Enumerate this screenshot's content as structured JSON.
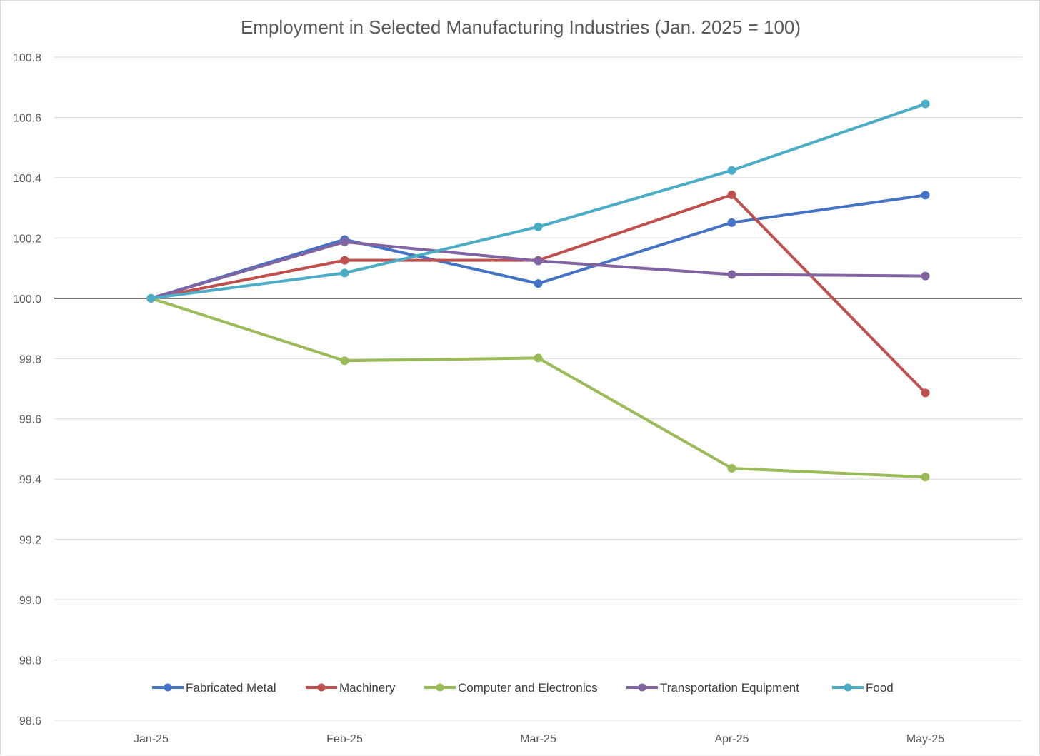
{
  "chart_data": {
    "type": "line",
    "title": "Employment in Selected Manufacturing Industries (Jan. 2025 = 100)",
    "xlabel": "",
    "ylabel": "",
    "categories": [
      "Jan-25",
      "Feb-25",
      "Mar-25",
      "Apr-25",
      "May-25"
    ],
    "ylim": [
      98.6,
      100.8
    ],
    "yticks": [
      "100.8",
      "100.6",
      "100.4",
      "100.2",
      "100.0",
      "99.8",
      "99.6",
      "99.4",
      "99.2",
      "99.0",
      "98.8",
      "98.6"
    ],
    "baseline": 100.0,
    "grid": true,
    "legend_position": "bottom",
    "series": [
      {
        "name": "Fabricated Metal",
        "color": "#4472c4",
        "values": [
          100.0,
          100.195,
          100.049,
          100.251,
          100.342
        ]
      },
      {
        "name": "Machinery",
        "color": "#c0504d",
        "values": [
          100.0,
          100.126,
          100.126,
          100.343,
          99.686
        ]
      },
      {
        "name": "Computer and Electronics",
        "color": "#9bbb59",
        "values": [
          100.0,
          99.793,
          99.802,
          99.436,
          99.407
        ]
      },
      {
        "name": "Transportation Equipment",
        "color": "#8064a2",
        "values": [
          100.0,
          100.187,
          100.124,
          100.079,
          100.074
        ]
      },
      {
        "name": "Food",
        "color": "#4bacc6",
        "values": [
          100.0,
          100.084,
          100.237,
          100.424,
          100.645
        ]
      }
    ]
  }
}
